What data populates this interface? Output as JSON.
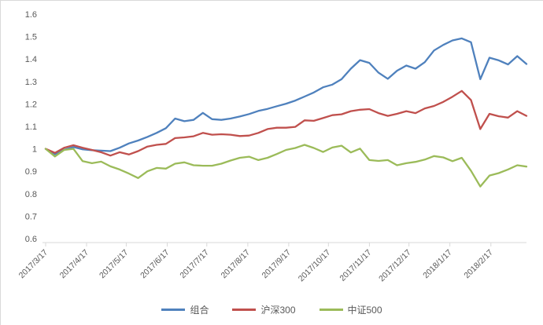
{
  "chart_data": {
    "type": "line",
    "title": "",
    "xlabel": "",
    "ylabel": "",
    "ylim": [
      0.6,
      1.6
    ],
    "grid": false,
    "legend_position": "bottom",
    "axis_label_color": "#595959",
    "axis_line_color": "#d9d9d9",
    "y_tick_labels": [
      "1.6",
      "1.5",
      "1.4",
      "1.3",
      "1.2",
      "1.1",
      "1",
      "0.9",
      "0.8",
      "0.7",
      "0.6"
    ],
    "x_axis_tick_labels": [
      "2017/3/17",
      "2017/4/17",
      "2017/5/17",
      "2017/6/17",
      "2017/7/17",
      "2017/8/17",
      "2017/9/17",
      "2017/10/17",
      "2017/11/17",
      "2017/12/17",
      "2018/1/17",
      "2018/2/17"
    ],
    "x": [
      "2017/3/17",
      "2017/3/24",
      "2017/3/31",
      "2017/4/7",
      "2017/4/14",
      "2017/4/21",
      "2017/4/28",
      "2017/5/5",
      "2017/5/12",
      "2017/5/19",
      "2017/5/26",
      "2017/6/2",
      "2017/6/9",
      "2017/6/16",
      "2017/6/23",
      "2017/6/30",
      "2017/7/7",
      "2017/7/14",
      "2017/7/21",
      "2017/7/28",
      "2017/8/4",
      "2017/8/11",
      "2017/8/18",
      "2017/8/25",
      "2017/9/1",
      "2017/9/8",
      "2017/9/15",
      "2017/9/22",
      "2017/9/29",
      "2017/10/6",
      "2017/10/13",
      "2017/10/20",
      "2017/10/27",
      "2017/11/3",
      "2017/11/10",
      "2017/11/17",
      "2017/11/24",
      "2017/12/1",
      "2017/12/8",
      "2017/12/15",
      "2017/12/22",
      "2017/12/29",
      "2018/1/5",
      "2018/1/12",
      "2018/1/19",
      "2018/1/26",
      "2018/2/2",
      "2018/2/9",
      "2018/2/16",
      "2018/2/23",
      "2018/3/2",
      "2018/3/9",
      "2018/3/16"
    ],
    "series": [
      {
        "name": "组合",
        "color": "#4F81BD",
        "values": [
          1.0,
          0.976,
          0.996,
          1.008,
          0.998,
          0.994,
          0.992,
          0.99,
          1.005,
          1.024,
          1.037,
          1.053,
          1.071,
          1.092,
          1.135,
          1.123,
          1.129,
          1.16,
          1.132,
          1.129,
          1.135,
          1.144,
          1.155,
          1.169,
          1.178,
          1.19,
          1.201,
          1.215,
          1.233,
          1.251,
          1.274,
          1.286,
          1.31,
          1.357,
          1.395,
          1.383,
          1.339,
          1.312,
          1.348,
          1.371,
          1.357,
          1.386,
          1.438,
          1.463,
          1.483,
          1.492,
          1.475,
          1.31,
          1.406,
          1.394,
          1.376,
          1.413,
          1.378
        ]
      },
      {
        "name": "沪深300",
        "color": "#C0504D",
        "values": [
          1.0,
          0.982,
          1.005,
          1.016,
          1.005,
          0.995,
          0.985,
          0.97,
          0.985,
          0.975,
          0.99,
          1.01,
          1.018,
          1.022,
          1.048,
          1.051,
          1.056,
          1.071,
          1.063,
          1.065,
          1.063,
          1.057,
          1.059,
          1.071,
          1.088,
          1.094,
          1.094,
          1.098,
          1.127,
          1.125,
          1.137,
          1.15,
          1.154,
          1.168,
          1.174,
          1.177,
          1.159,
          1.147,
          1.156,
          1.168,
          1.159,
          1.18,
          1.191,
          1.209,
          1.232,
          1.258,
          1.217,
          1.088,
          1.156,
          1.145,
          1.139,
          1.168,
          1.147
        ]
      },
      {
        "name": "中证500",
        "color": "#9BBB59",
        "values": [
          1.0,
          0.966,
          0.995,
          1.0,
          0.945,
          0.936,
          0.943,
          0.922,
          0.908,
          0.89,
          0.87,
          0.9,
          0.915,
          0.912,
          0.934,
          0.94,
          0.927,
          0.925,
          0.925,
          0.934,
          0.948,
          0.96,
          0.965,
          0.95,
          0.96,
          0.977,
          0.995,
          1.004,
          1.018,
          1.004,
          0.986,
          1.006,
          1.014,
          0.984,
          1.001,
          0.95,
          0.946,
          0.95,
          0.927,
          0.936,
          0.942,
          0.952,
          0.968,
          0.962,
          0.945,
          0.96,
          0.902,
          0.832,
          0.881,
          0.892,
          0.908,
          0.927,
          0.921
        ]
      }
    ]
  }
}
